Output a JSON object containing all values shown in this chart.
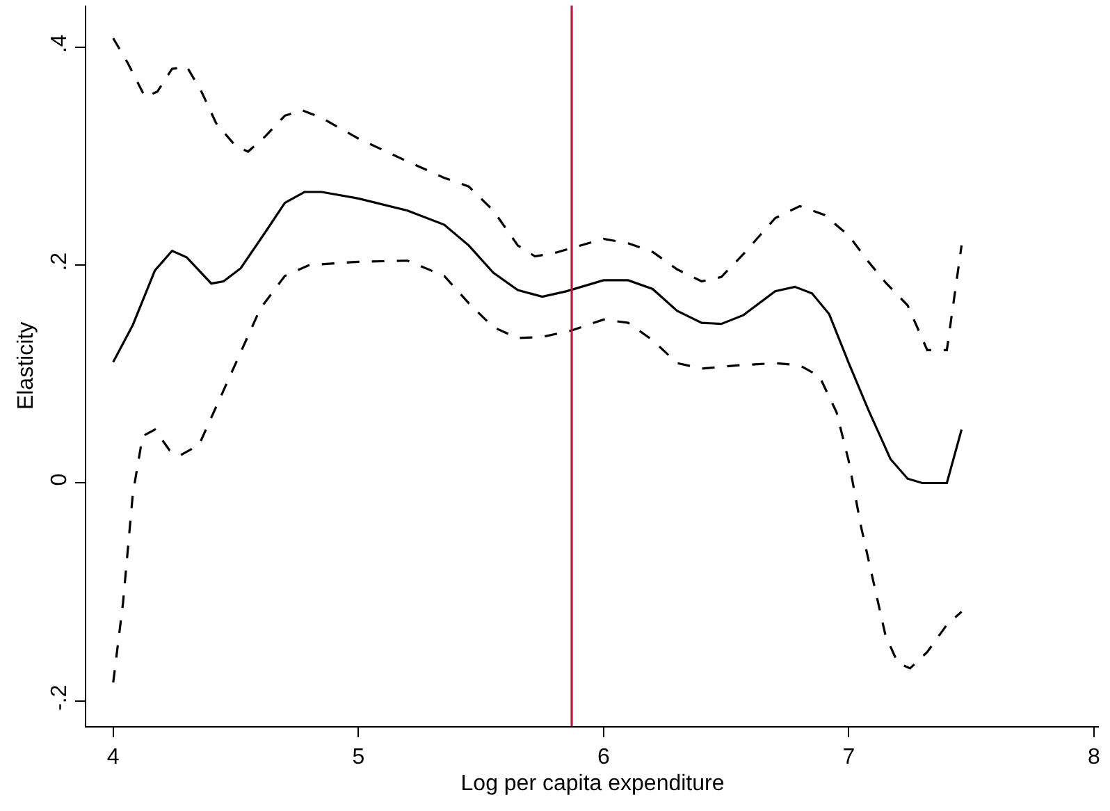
{
  "chart_data": {
    "type": "line",
    "xlabel": "Log per capita expenditure",
    "ylabel": "Elasticity",
    "xlim": [
      3.89,
      8.02
    ],
    "ylim": [
      -0.223,
      0.438
    ],
    "xticks": [
      4,
      5,
      6,
      7,
      8
    ],
    "yticks": [
      {
        "value": -0.2,
        "label": "-.2"
      },
      {
        "value": 0,
        "label": "0"
      },
      {
        "value": 0.2,
        "label": ".2"
      },
      {
        "value": 0.4,
        "label": ".4"
      }
    ],
    "grid": false,
    "marker": "none",
    "ref_lines": [
      {
        "axis": "x",
        "value": 5.87,
        "color": "#c0143c",
        "line_style": "solid"
      }
    ],
    "series": [
      {
        "color": "#000000",
        "line_style": "solid",
        "x": [
          4.0,
          4.08,
          4.17,
          4.24,
          4.3,
          4.4,
          4.45,
          4.52,
          4.62,
          4.7,
          4.78,
          4.85,
          5.0,
          5.2,
          5.35,
          5.45,
          5.55,
          5.65,
          5.75,
          5.85,
          6.0,
          6.1,
          6.2,
          6.3,
          6.4,
          6.48,
          6.57,
          6.7,
          6.78,
          6.85,
          6.92,
          7.0,
          7.08,
          7.17,
          7.24,
          7.3,
          7.4,
          7.46
        ],
        "values": [
          0.111,
          0.145,
          0.195,
          0.213,
          0.207,
          0.183,
          0.185,
          0.197,
          0.23,
          0.257,
          0.267,
          0.267,
          0.261,
          0.25,
          0.237,
          0.218,
          0.193,
          0.177,
          0.171,
          0.176,
          0.186,
          0.186,
          0.178,
          0.158,
          0.147,
          0.146,
          0.154,
          0.176,
          0.18,
          0.174,
          0.155,
          0.11,
          0.067,
          0.022,
          0.004,
          0.0,
          0.0,
          0.049
        ]
      },
      {
        "color": "#000000",
        "line_style": "dashed",
        "x": [
          4.0,
          4.06,
          4.13,
          4.18,
          4.24,
          4.3,
          4.36,
          4.42,
          4.5,
          4.55,
          4.62,
          4.7,
          4.77,
          4.85,
          5.0,
          5.2,
          5.35,
          5.45,
          5.55,
          5.65,
          5.72,
          5.8,
          6.0,
          6.1,
          6.2,
          6.3,
          6.4,
          6.48,
          6.57,
          6.7,
          6.8,
          6.9,
          7.0,
          7.08,
          7.15,
          7.24,
          7.32,
          7.4,
          7.46
        ],
        "values": [
          0.408,
          0.385,
          0.354,
          0.359,
          0.38,
          0.382,
          0.359,
          0.33,
          0.309,
          0.304,
          0.318,
          0.337,
          0.342,
          0.335,
          0.316,
          0.295,
          0.28,
          0.272,
          0.25,
          0.218,
          0.208,
          0.211,
          0.224,
          0.22,
          0.212,
          0.196,
          0.185,
          0.189,
          0.21,
          0.243,
          0.254,
          0.246,
          0.227,
          0.203,
          0.184,
          0.163,
          0.122,
          0.122,
          0.218
        ]
      },
      {
        "color": "#000000",
        "line_style": "dashed",
        "x": [
          4.0,
          4.04,
          4.08,
          4.12,
          4.17,
          4.23,
          4.27,
          4.35,
          4.4,
          4.5,
          4.6,
          4.7,
          4.8,
          5.0,
          5.2,
          5.35,
          5.45,
          5.55,
          5.65,
          5.75,
          5.87,
          6.0,
          6.1,
          6.2,
          6.3,
          6.4,
          6.55,
          6.7,
          6.8,
          6.88,
          6.95,
          7.0,
          7.05,
          7.1,
          7.15,
          7.2,
          7.25,
          7.32,
          7.4,
          7.46
        ],
        "values": [
          -0.183,
          -0.11,
          -0.01,
          0.043,
          0.049,
          0.03,
          0.025,
          0.035,
          0.06,
          0.11,
          0.16,
          0.19,
          0.2,
          0.203,
          0.204,
          0.19,
          0.165,
          0.143,
          0.133,
          0.134,
          0.14,
          0.15,
          0.147,
          0.131,
          0.11,
          0.105,
          0.108,
          0.11,
          0.108,
          0.098,
          0.065,
          0.02,
          -0.04,
          -0.09,
          -0.14,
          -0.165,
          -0.17,
          -0.155,
          -0.13,
          -0.118
        ]
      }
    ]
  }
}
